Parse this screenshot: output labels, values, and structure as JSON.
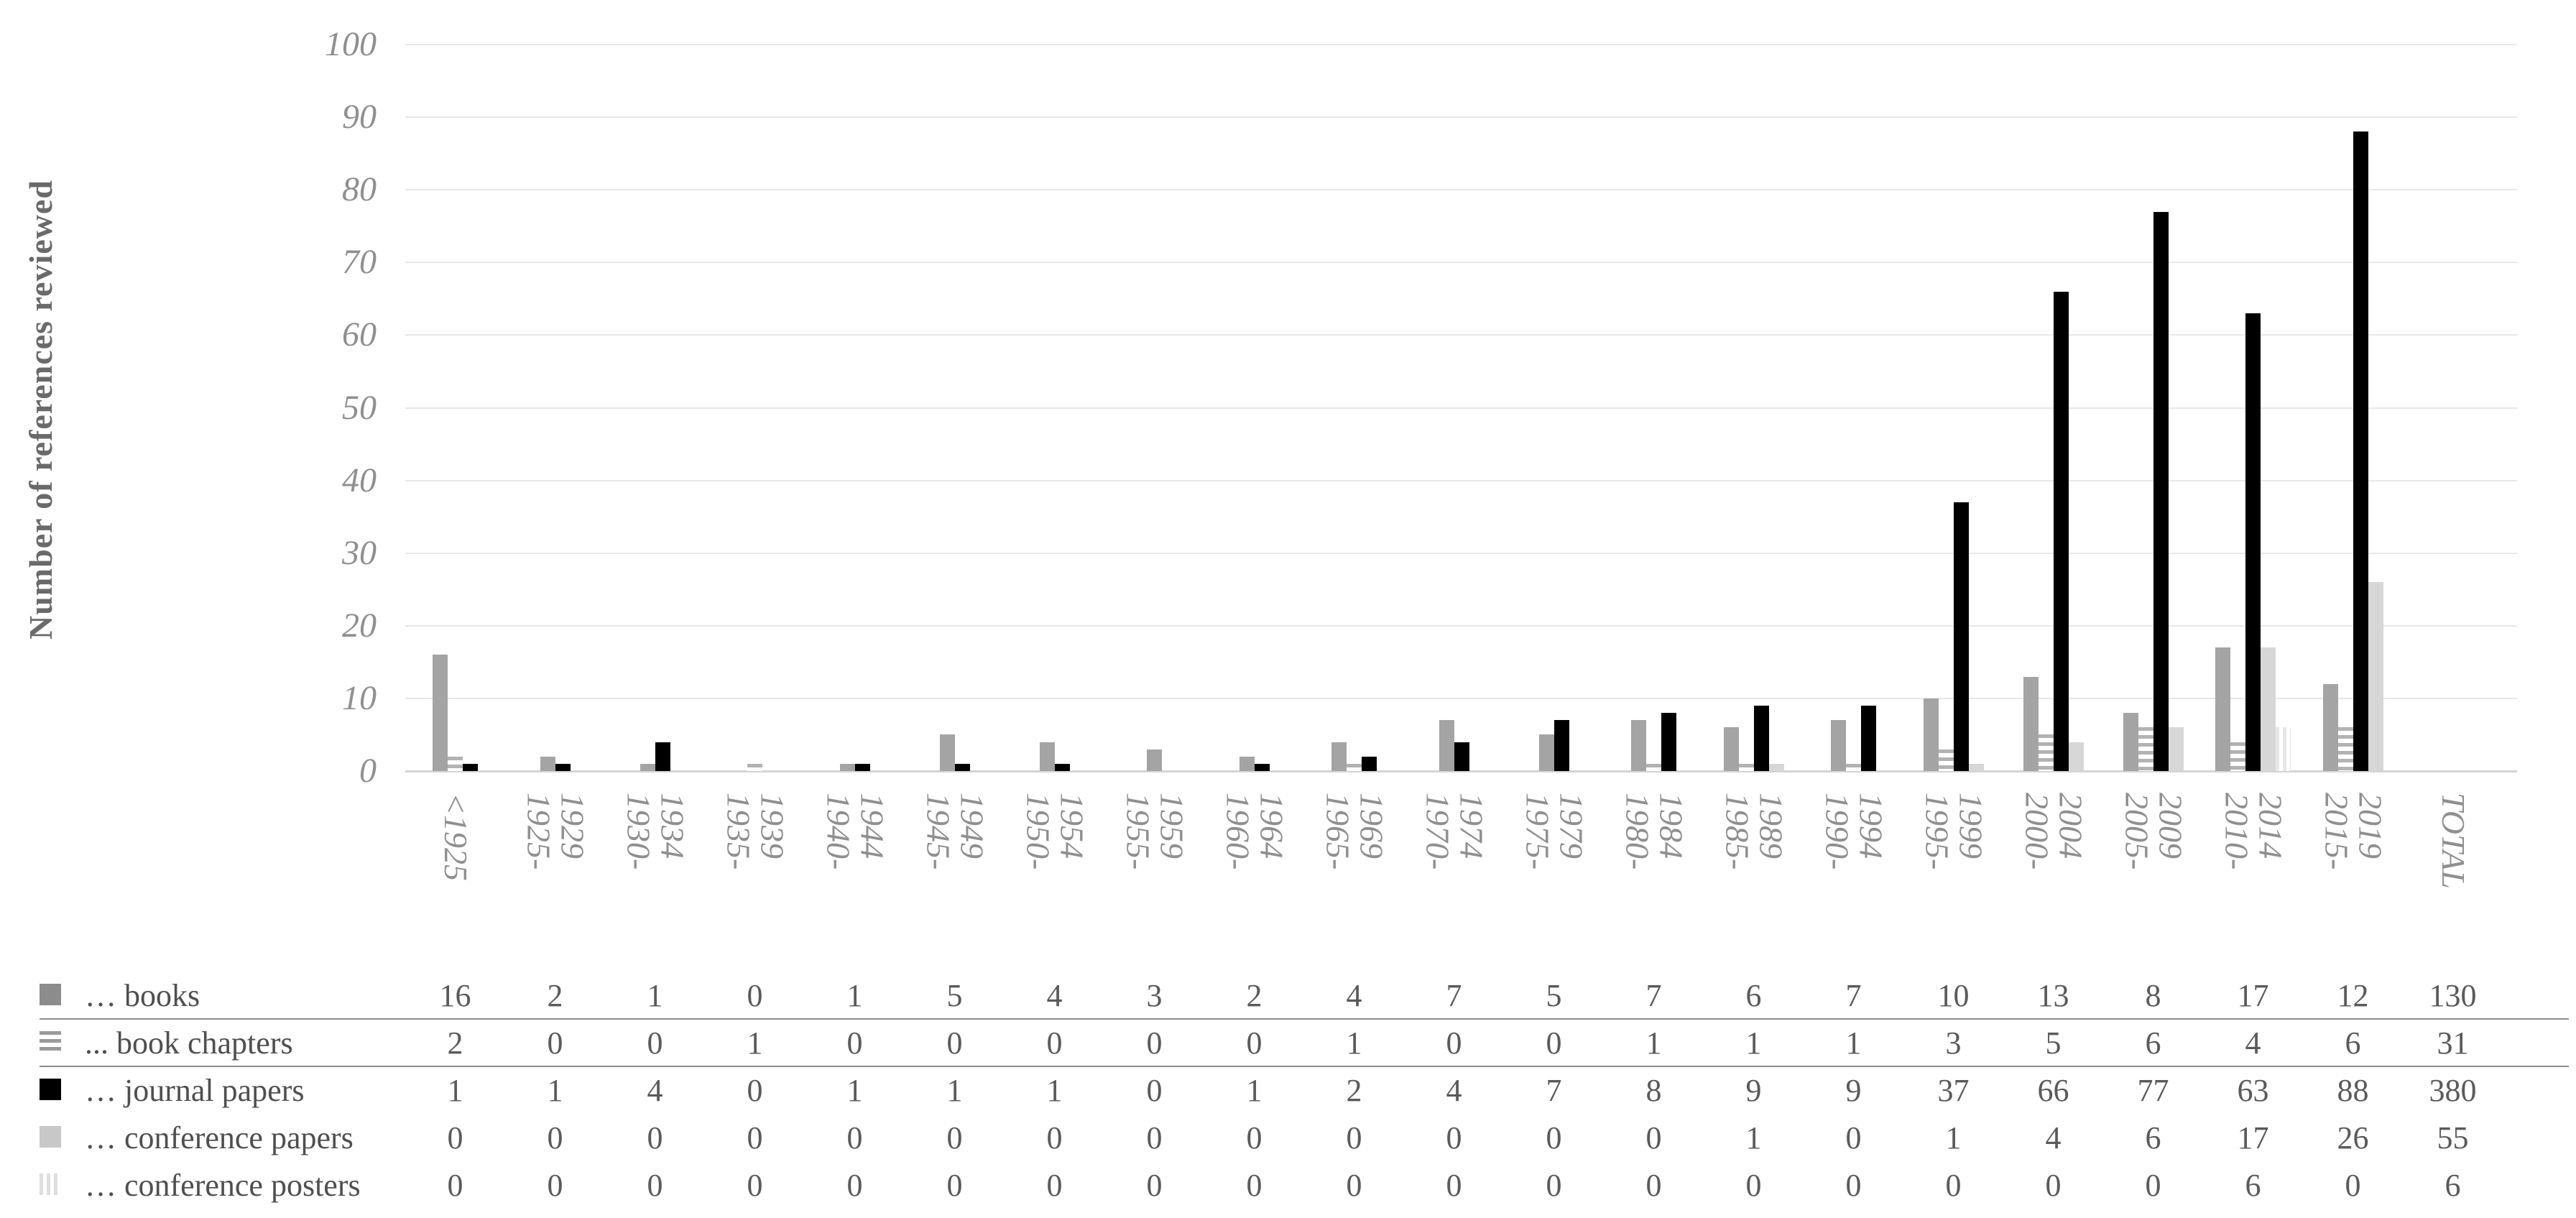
{
  "chart_data": {
    "type": "bar",
    "title": "",
    "ylabel": "Number of references reviewed",
    "xlabel": "",
    "ylim": [
      0,
      100
    ],
    "ytick_step": 10,
    "grid": true,
    "legend_position": "table-left",
    "categories": [
      "<1925",
      "1925-1929",
      "1930-1934",
      "1935-1939",
      "1940-1944",
      "1945-1949",
      "1950-1954",
      "1955-1959",
      "1960-1964",
      "1965-1969",
      "1970-1974",
      "1975-1979",
      "1980-1984",
      "1985-1989",
      "1990-1994",
      "1995-1999",
      "2000-2004",
      "2005-2009",
      "2010-2014",
      "2015-2019",
      "TOTAL"
    ],
    "category_label_lines": [
      [
        "<1925"
      ],
      [
        "1925-",
        "1929"
      ],
      [
        "1930-",
        "1934"
      ],
      [
        "1935-",
        "1939"
      ],
      [
        "1940-",
        "1944"
      ],
      [
        "1945-",
        "1949"
      ],
      [
        "1950-",
        "1954"
      ],
      [
        "1955-",
        "1959"
      ],
      [
        "1960-",
        "1964"
      ],
      [
        "1965-",
        "1969"
      ],
      [
        "1970-",
        "1974"
      ],
      [
        "1975-",
        "1979"
      ],
      [
        "1980-",
        "1984"
      ],
      [
        "1985-",
        "1989"
      ],
      [
        "1990-",
        "1994"
      ],
      [
        "1995-",
        "1999"
      ],
      [
        "2000-",
        "2004"
      ],
      [
        "2005-",
        "2009"
      ],
      [
        "2010-",
        "2014"
      ],
      [
        "2015-",
        "2019"
      ],
      [
        "TOTAL"
      ]
    ],
    "series": [
      {
        "key": "books",
        "name": "… books",
        "pattern": "solid",
        "color": "#a4a4a4",
        "swatch_color": "#8c8c8c",
        "values": [
          16,
          2,
          1,
          0,
          1,
          5,
          4,
          3,
          2,
          4,
          7,
          5,
          7,
          6,
          7,
          10,
          13,
          8,
          17,
          12
        ],
        "total": 130
      },
      {
        "key": "book_chapters",
        "name": "... book chapters",
        "pattern": "hstripe",
        "color": "#b2b2b2",
        "swatch_color": "#9a9a9a",
        "values": [
          2,
          0,
          0,
          1,
          0,
          0,
          0,
          0,
          0,
          1,
          0,
          0,
          1,
          1,
          1,
          3,
          5,
          6,
          4,
          6
        ],
        "total": 31
      },
      {
        "key": "journal_papers",
        "name": "… journal papers",
        "pattern": "solid",
        "color": "#000000",
        "swatch_color": "#000000",
        "values": [
          1,
          1,
          4,
          0,
          1,
          1,
          1,
          0,
          1,
          2,
          4,
          7,
          8,
          9,
          9,
          37,
          66,
          77,
          63,
          88
        ],
        "total": 380
      },
      {
        "key": "conference_papers",
        "name": "… conference papers",
        "pattern": "solid",
        "color": "#d7d7d7",
        "swatch_color": "#c8c8c8",
        "values": [
          0,
          0,
          0,
          0,
          0,
          0,
          0,
          0,
          0,
          0,
          0,
          0,
          0,
          1,
          0,
          1,
          4,
          6,
          17,
          26
        ],
        "total": 55
      },
      {
        "key": "conference_posters",
        "name": "… conference posters",
        "pattern": "vstripe",
        "color": "#e7e7e7",
        "swatch_color": "#dedede",
        "values": [
          0,
          0,
          0,
          0,
          0,
          0,
          0,
          0,
          0,
          0,
          0,
          0,
          0,
          0,
          0,
          0,
          0,
          0,
          6,
          0
        ],
        "total": 6
      }
    ],
    "colors": {
      "gridline": "#e8e8e8",
      "axis_line": "#d4d4d4",
      "tick_label": "#8f8f8f",
      "category_label": "#8f8f8f",
      "y_title": "#6a6a6a",
      "table_text": "#5a5a5a",
      "row_separator": "#8c8c8c"
    }
  }
}
